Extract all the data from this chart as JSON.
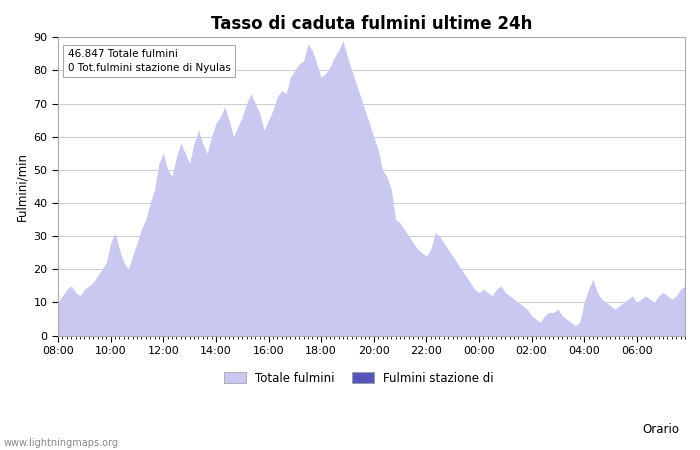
{
  "title": "Tasso di caduta fulmini ultime 24h",
  "ylabel": "Fulmini/min",
  "xlabel": "Orario",
  "annotation": "46.847 Totale fulmini\n0 Tot.fulmini stazione di Nyulas",
  "ylim": [
    0,
    90
  ],
  "yticks": [
    0,
    10,
    20,
    30,
    40,
    50,
    60,
    70,
    80,
    90
  ],
  "xtick_labels": [
    "08:00",
    "10:00",
    "12:00",
    "14:00",
    "16:00",
    "18:00",
    "20:00",
    "22:00",
    "00:00",
    "02:00",
    "04:00",
    "06:00"
  ],
  "fill_color_light": "#c8c8f0",
  "fill_color_dark": "#5555bb",
  "background_color": "#ffffff",
  "grid_color": "#cccccc",
  "watermark": "www.lightningmaps.org",
  "legend_label1": "Totale fulmini",
  "legend_label2": "Fulmini stazione di",
  "y_total": [
    10,
    12,
    14,
    15,
    13,
    12,
    14,
    15,
    16,
    18,
    20,
    22,
    28,
    31,
    26,
    22,
    20,
    24,
    28,
    32,
    35,
    40,
    44,
    52,
    55,
    50,
    48,
    54,
    58,
    55,
    52,
    58,
    62,
    58,
    55,
    60,
    64,
    66,
    69,
    65,
    60,
    63,
    66,
    70,
    73,
    70,
    67,
    62,
    65,
    68,
    72,
    74,
    73,
    78,
    80,
    82,
    83,
    88,
    86,
    82,
    78,
    79,
    81,
    84,
    86,
    89,
    84,
    80,
    76,
    72,
    68,
    64,
    60,
    56,
    50,
    48,
    44,
    35,
    34,
    32,
    30,
    28,
    26,
    25,
    24,
    26,
    31,
    30,
    28,
    26,
    24,
    22,
    20,
    18,
    16,
    14,
    13,
    14,
    13,
    12,
    14,
    15,
    13,
    12,
    11,
    10,
    9,
    8,
    6,
    5,
    4,
    6,
    7,
    7,
    8,
    6,
    5,
    4,
    3,
    4,
    10,
    14,
    17,
    13,
    11,
    10,
    9,
    8,
    9,
    10,
    11,
    12,
    10,
    11,
    12,
    11,
    10,
    12,
    13,
    12,
    11,
    12,
    14,
    15
  ],
  "y_station": [
    0,
    0,
    0,
    0,
    0,
    0,
    0,
    0,
    0,
    0,
    0,
    0,
    0,
    0,
    0,
    0,
    0,
    0,
    0,
    0,
    0,
    0,
    0,
    0,
    0,
    0,
    0,
    0,
    0,
    0,
    0,
    0,
    0,
    0,
    0,
    0,
    0,
    0,
    0,
    0,
    0,
    0,
    0,
    0,
    0,
    0,
    0,
    0,
    0,
    0,
    0,
    0,
    0,
    0,
    0,
    0,
    0,
    0,
    0,
    0,
    0,
    0,
    0,
    0,
    0,
    0,
    0,
    0,
    0,
    0,
    0,
    0,
    0,
    0,
    0,
    0,
    0,
    0,
    0,
    0,
    0,
    0,
    0,
    0,
    0,
    0,
    0,
    0,
    0,
    0,
    0,
    0,
    0,
    0,
    0,
    0,
    0,
    0,
    0,
    0,
    0,
    0,
    0,
    0,
    0,
    0,
    0,
    0,
    0,
    0,
    0,
    0,
    0,
    0,
    0,
    0,
    0,
    0,
    0,
    0,
    0,
    0,
    0,
    0,
    0,
    0,
    0,
    0,
    0,
    0,
    0,
    0,
    0,
    0,
    0,
    0,
    0,
    0,
    0,
    0,
    0,
    0,
    0,
    0
  ]
}
